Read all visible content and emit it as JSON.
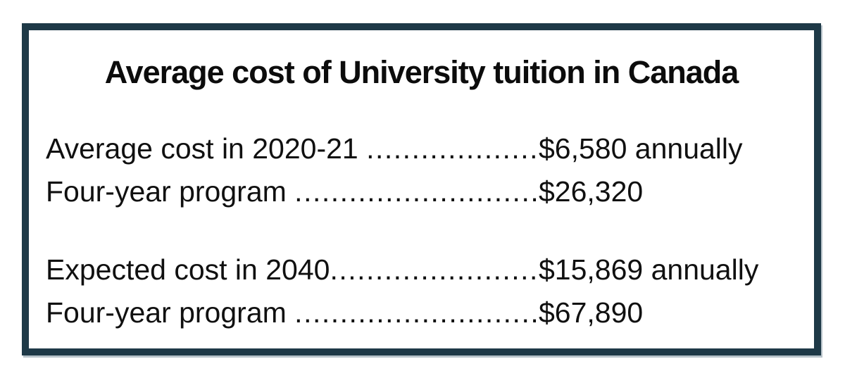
{
  "card": {
    "title": "Average cost of University tuition in Canada",
    "border_color": "#1e3947",
    "text_color": "#101010",
    "background_color": "#ffffff",
    "sections": [
      {
        "rows": [
          {
            "label": "Average cost in 2020-21 ",
            "dots": ".............................................",
            "value": "$6,580 annually"
          },
          {
            "label": "Four-year program ",
            "dots": ".............................................",
            "value": "$26,320"
          }
        ]
      },
      {
        "rows": [
          {
            "label": "Expected cost in 2040",
            "dots": ".............................................",
            "value": "$15,869 annually"
          },
          {
            "label": "Four-year program ",
            "dots": ".............................................",
            "value": "$67,890"
          }
        ]
      }
    ]
  }
}
